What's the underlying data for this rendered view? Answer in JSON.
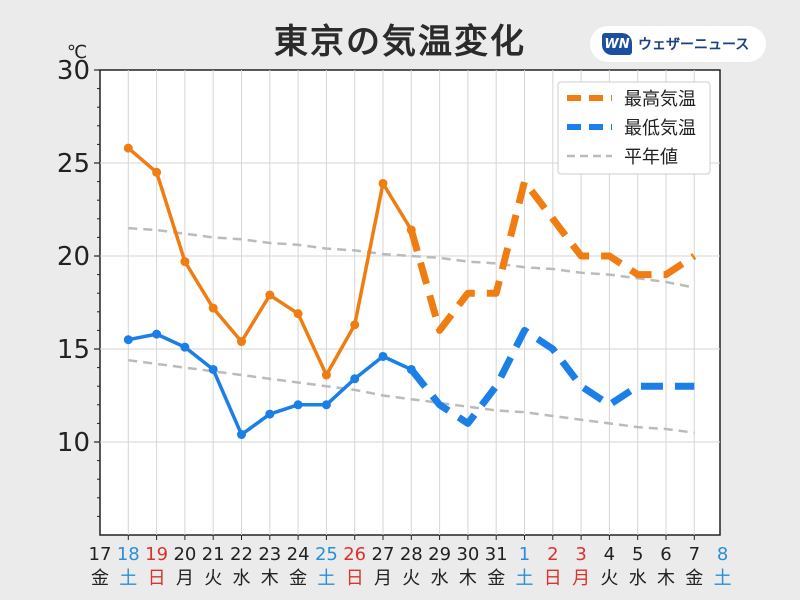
{
  "page_title": "東京の気温変化",
  "logo": {
    "mark": "WN",
    "text": "ウェザーニュース"
  },
  "chart_data": {
    "type": "line",
    "title": "東京の気温変化",
    "unit_label": "℃",
    "ylim": [
      5,
      30
    ],
    "yticks": [
      10,
      15,
      20,
      25,
      30
    ],
    "legend_position": "top-right",
    "grid": true,
    "dates": [
      "17",
      "18",
      "19",
      "20",
      "21",
      "22",
      "23",
      "24",
      "25",
      "26",
      "27",
      "28",
      "29",
      "30",
      "31",
      "1",
      "2",
      "3",
      "4",
      "5",
      "6",
      "7",
      "8"
    ],
    "weekdays": [
      "金",
      "土",
      "日",
      "月",
      "火",
      "水",
      "木",
      "金",
      "土",
      "日",
      "月",
      "火",
      "水",
      "木",
      "金",
      "土",
      "日",
      "月",
      "火",
      "水",
      "木",
      "金",
      "土"
    ],
    "label_colors": [
      "#222222",
      "#2a8fd8",
      "#d9332b",
      "#222222",
      "#222222",
      "#222222",
      "#222222",
      "#222222",
      "#2a8fd8",
      "#d9332b",
      "#222222",
      "#222222",
      "#222222",
      "#222222",
      "#222222",
      "#2a8fd8",
      "#d9332b",
      "#d9332b",
      "#222222",
      "#222222",
      "#222222",
      "#222222",
      "#2a8fd8"
    ],
    "series": [
      {
        "name": "最高気温",
        "color": "#ef7d12",
        "observed": [
          null,
          25.8,
          24.5,
          19.7,
          17.2,
          15.4,
          17.9,
          16.9,
          13.6,
          16.3,
          23.9,
          21.4,
          null,
          null,
          null,
          null,
          null,
          null,
          null,
          null,
          null,
          null,
          null
        ],
        "forecast": [
          null,
          null,
          null,
          null,
          null,
          null,
          null,
          null,
          null,
          null,
          null,
          21.4,
          16.0,
          18.0,
          18.0,
          24.0,
          22.0,
          20.0,
          20.0,
          19.0,
          19.0,
          20.0,
          null
        ]
      },
      {
        "name": "最低気温",
        "color": "#1a7fe6",
        "observed": [
          null,
          15.5,
          15.8,
          15.1,
          13.9,
          10.4,
          11.5,
          12.0,
          12.0,
          13.4,
          14.6,
          13.9,
          null,
          null,
          null,
          null,
          null,
          null,
          null,
          null,
          null,
          null,
          null
        ],
        "forecast": [
          null,
          null,
          null,
          null,
          null,
          null,
          null,
          null,
          null,
          null,
          null,
          13.9,
          12.0,
          11.0,
          13.0,
          16.0,
          15.0,
          13.0,
          12.0,
          13.0,
          13.0,
          13.0,
          null
        ]
      },
      {
        "name": "平年値",
        "color": "#bbbbbb",
        "high": [
          null,
          21.5,
          21.4,
          21.2,
          21.0,
          20.9,
          20.7,
          20.6,
          20.4,
          20.3,
          20.1,
          20.0,
          19.9,
          19.7,
          19.6,
          19.4,
          19.3,
          19.1,
          19.0,
          18.8,
          18.6,
          18.3,
          null
        ],
        "low": [
          null,
          14.4,
          14.2,
          14.0,
          13.8,
          13.6,
          13.4,
          13.2,
          13.0,
          12.8,
          12.5,
          12.3,
          12.1,
          11.9,
          11.7,
          11.6,
          11.4,
          11.2,
          11.0,
          10.8,
          10.7,
          10.5,
          null
        ]
      }
    ]
  }
}
